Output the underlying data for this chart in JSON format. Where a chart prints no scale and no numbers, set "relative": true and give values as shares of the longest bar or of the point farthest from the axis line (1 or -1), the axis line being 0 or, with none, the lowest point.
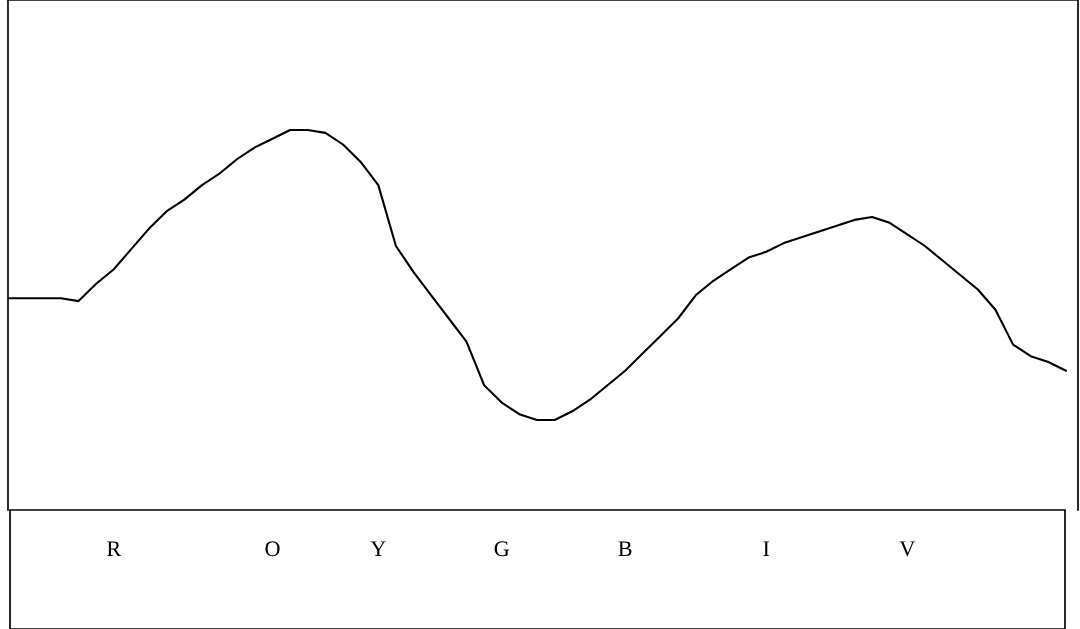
{
  "chart_data": {
    "type": "line",
    "relative": true,
    "color": "#000000",
    "legend": false,
    "marker": "none",
    "line_style": "solid",
    "categories": [
      null,
      null,
      null,
      null,
      null,
      null,
      "R",
      null,
      null,
      null,
      null,
      null,
      null,
      null,
      null,
      "O",
      null,
      null,
      null,
      null,
      null,
      "Y",
      null,
      null,
      null,
      null,
      null,
      null,
      "G",
      null,
      null,
      null,
      null,
      null,
      null,
      "B",
      null,
      null,
      null,
      null,
      null,
      null,
      null,
      "I",
      null,
      null,
      null,
      null,
      null,
      null,
      null,
      "V",
      null,
      null,
      null,
      null,
      null,
      null,
      null,
      null,
      null
    ],
    "values": [
      0.42,
      0.42,
      0.42,
      0.42,
      0.41,
      0.47,
      0.52,
      0.59,
      0.66,
      0.72,
      0.76,
      0.81,
      0.85,
      0.9,
      0.94,
      0.97,
      1.0,
      1,
      0.99,
      0.95,
      0.89,
      0.81,
      0.6,
      0.51,
      0.43,
      0.35,
      0.27,
      0.12,
      0.06,
      0.02,
      0,
      0,
      0.03,
      0.07,
      0.12,
      0.17,
      0.23,
      0.29,
      0.35,
      0.43,
      0.48,
      0.52,
      0.56,
      0.58,
      0.61,
      0.63,
      0.65,
      0.67,
      0.69,
      0.7,
      0.68,
      0.64,
      0.6,
      0.55,
      0.5,
      0.45,
      0.38,
      0.26,
      0.22,
      0.2,
      0.17
    ]
  }
}
